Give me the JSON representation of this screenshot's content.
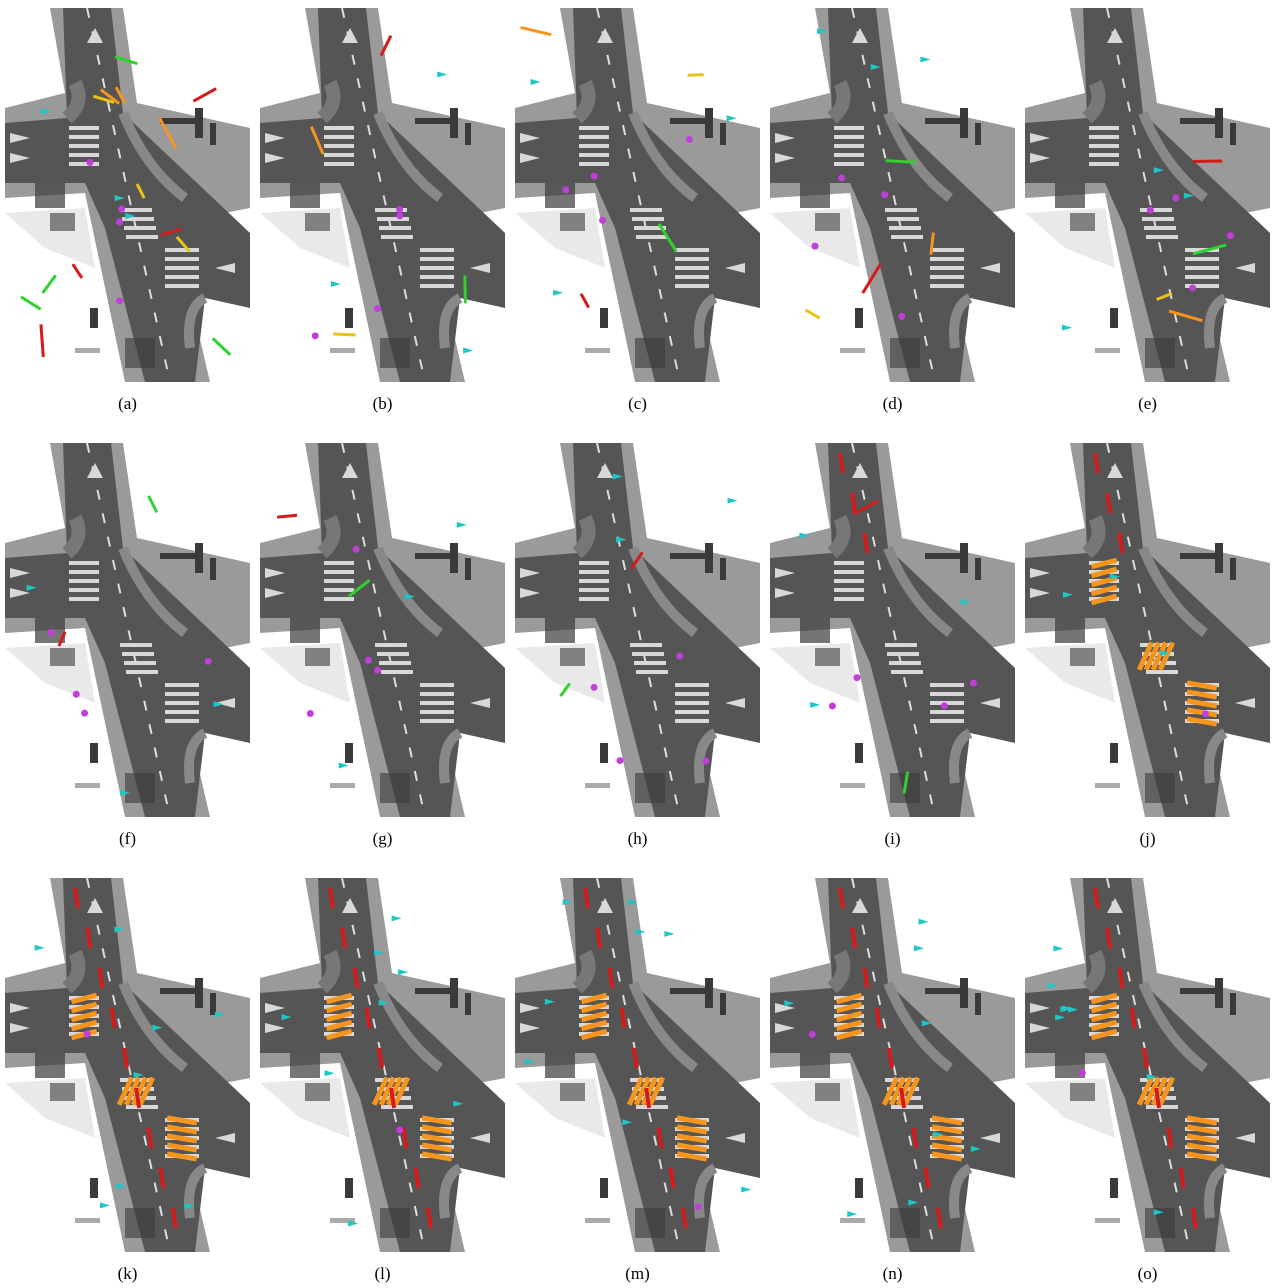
{
  "panels": [
    {
      "caption": "(a)"
    },
    {
      "caption": "(b)"
    },
    {
      "caption": "(c)"
    },
    {
      "caption": "(d)"
    },
    {
      "caption": "(e)"
    },
    {
      "caption": "(f)"
    },
    {
      "caption": "(g)"
    },
    {
      "caption": "(h)"
    },
    {
      "caption": "(i)"
    },
    {
      "caption": "(j)"
    },
    {
      "caption": "(k)"
    },
    {
      "caption": "(l)"
    },
    {
      "caption": "(m)"
    },
    {
      "caption": "(n)"
    },
    {
      "caption": "(o)"
    }
  ]
}
